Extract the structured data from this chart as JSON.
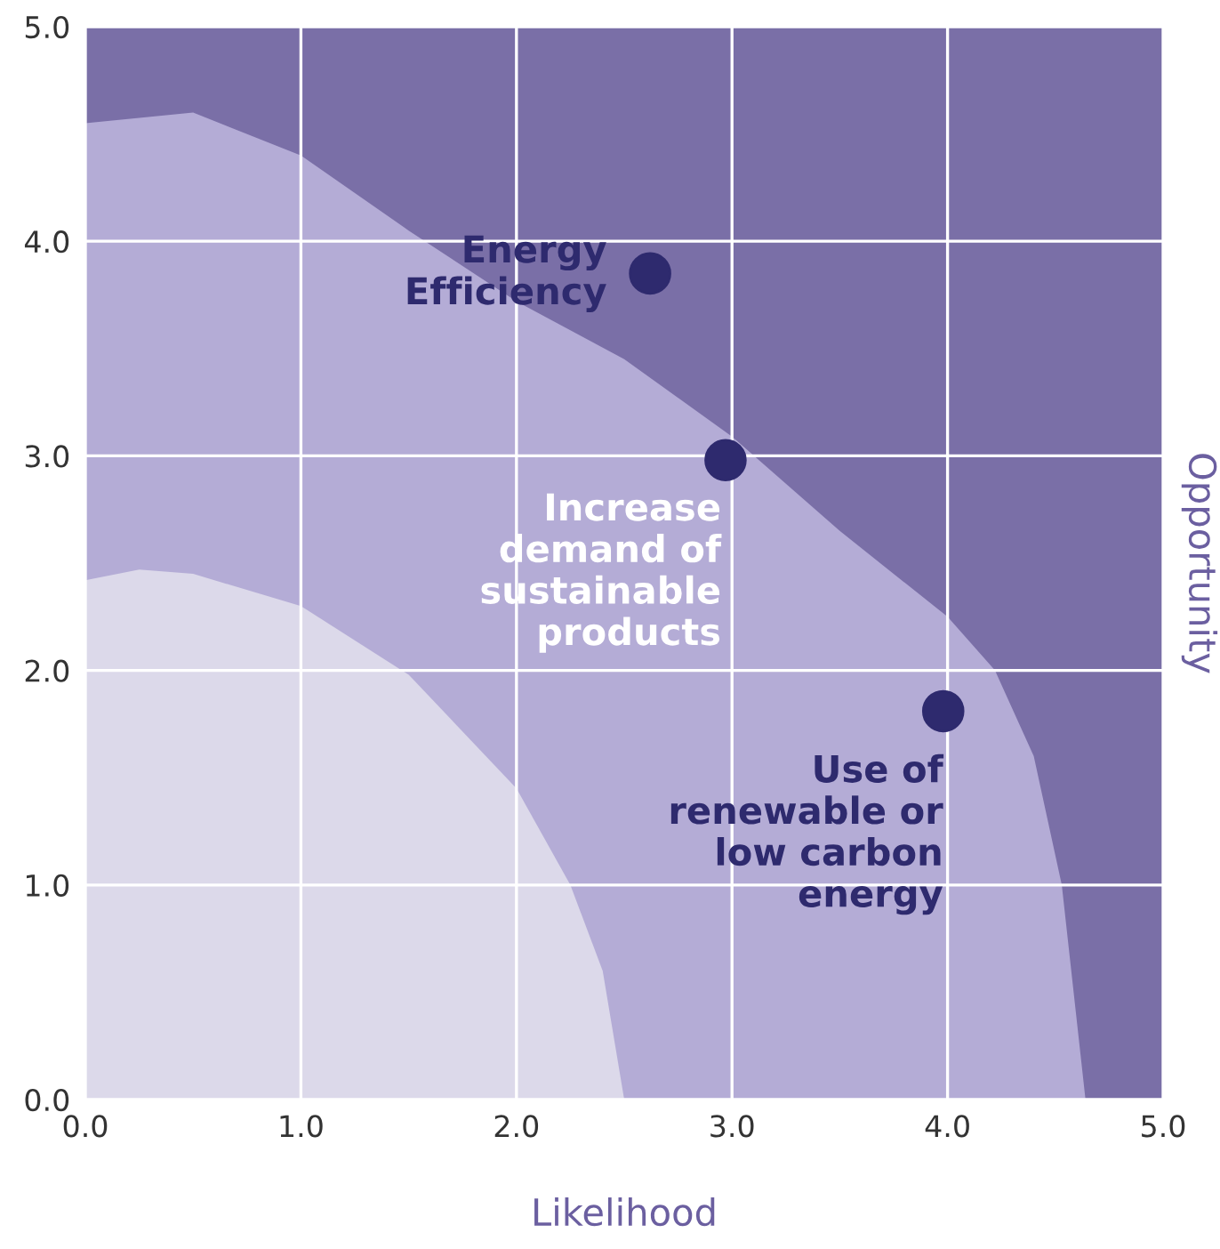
{
  "chart_data": {
    "type": "scatter",
    "xlabel": "Likelihood",
    "ylabel": "Opportunity",
    "series": [
      {
        "type": "area",
        "color": "#7a6fa7",
        "x": [
          0,
          5
        ],
        "values": [
          5,
          5
        ]
      },
      {
        "type": "area",
        "color": "#b4acd6",
        "x": [
          0,
          0.5,
          1,
          1.5,
          2,
          2.5,
          3,
          3.5,
          4,
          4.22,
          4.4,
          4.53,
          4.64
        ],
        "values": [
          4.55,
          4.6,
          4.4,
          4.05,
          3.72,
          3.45,
          3.09,
          2.65,
          2.25,
          2.0,
          1.6,
          1.0,
          0
        ]
      },
      {
        "type": "area",
        "color": "#dcd9ea",
        "x": [
          0,
          0.25,
          0.5,
          1,
          1.5,
          2,
          2.25,
          2.4,
          2.5
        ],
        "values": [
          2.42,
          2.47,
          2.45,
          2.3,
          1.98,
          1.45,
          1.0,
          0.6,
          0
        ]
      },
      {
        "color": "#2e2a6e",
        "marker": "circle",
        "x": [
          2.62,
          2.97,
          3.98
        ],
        "values": [
          3.85,
          2.98,
          1.81
        ]
      }
    ],
    "grid": true,
    "xlim": [
      0,
      5
    ],
    "ylim": [
      0,
      5
    ],
    "xticks": [
      {
        "value": 0,
        "label": "0.0"
      },
      {
        "value": 1,
        "label": "1.0"
      },
      {
        "value": 2,
        "label": "2.0"
      },
      {
        "value": 3,
        "label": "3.0"
      },
      {
        "value": 4,
        "label": "4.0"
      },
      {
        "value": 5,
        "label": "5.0"
      }
    ],
    "yticks": [
      {
        "value": 0,
        "label": "0.0"
      },
      {
        "value": 1,
        "label": "1.0"
      },
      {
        "value": 2,
        "label": "2.0"
      },
      {
        "value": 3,
        "label": "3.0"
      },
      {
        "value": 4,
        "label": "4.0"
      },
      {
        "value": 5,
        "label": "5.0"
      }
    ],
    "annotations": [
      {
        "text": "Energy\nEfficiency",
        "x": 2.62,
        "y": 3.85
      },
      {
        "text": "Increase\ndemand of\nsustainable\nproducts",
        "x": 2.97,
        "y": 2.98
      },
      {
        "text": "Use of\nrenewable or\nlow carbon\nenergy",
        "x": 3.98,
        "y": 1.81
      }
    ]
  }
}
